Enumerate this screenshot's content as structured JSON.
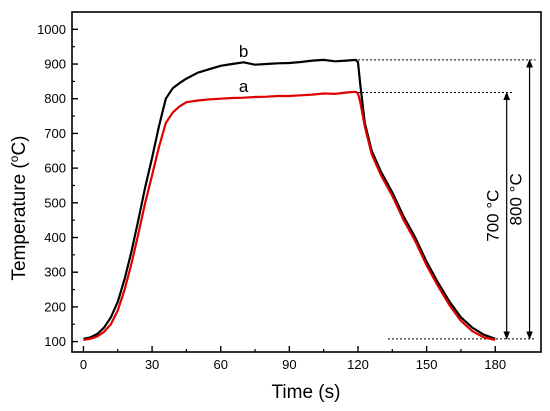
{
  "chart_data": {
    "type": "line",
    "xlabel": "Time (s)",
    "ylabel_main": "Temperature (",
    "ylabel_sup": "o",
    "ylabel_end": "C)",
    "xlim": [
      -5,
      200
    ],
    "ylim": [
      70,
      1050
    ],
    "x_ticks": [
      0,
      30,
      60,
      90,
      120,
      150,
      180
    ],
    "y_ticks": [
      100,
      200,
      300,
      400,
      500,
      600,
      700,
      800,
      900,
      1000
    ],
    "grid": false,
    "series": [
      {
        "name": "b",
        "color": "#000000",
        "label_at": [
          70,
          920
        ],
        "x": [
          0,
          3,
          6,
          9,
          12,
          15,
          18,
          21,
          24,
          27,
          30,
          33,
          36,
          39,
          42,
          45,
          50,
          55,
          60,
          65,
          70,
          75,
          80,
          85,
          90,
          95,
          100,
          105,
          110,
          115,
          119,
          120,
          121,
          123,
          126,
          130,
          135,
          140,
          145,
          150,
          155,
          160,
          165,
          170,
          175,
          180
        ],
        "y": [
          108,
          112,
          122,
          140,
          170,
          215,
          280,
          360,
          450,
          545,
          630,
          720,
          800,
          830,
          845,
          858,
          875,
          885,
          895,
          900,
          905,
          898,
          900,
          902,
          903,
          906,
          910,
          912,
          908,
          910,
          912,
          905,
          840,
          730,
          650,
          590,
          530,
          460,
          400,
          330,
          270,
          215,
          170,
          140,
          120,
          108
        ]
      },
      {
        "name": "a",
        "color": "#e00000",
        "label_at": [
          70,
          820
        ],
        "x": [
          0,
          3,
          6,
          9,
          12,
          15,
          18,
          21,
          24,
          27,
          30,
          33,
          36,
          39,
          42,
          45,
          50,
          55,
          60,
          65,
          70,
          75,
          80,
          85,
          90,
          95,
          100,
          105,
          110,
          115,
          119,
          120,
          121,
          123,
          126,
          130,
          135,
          140,
          145,
          150,
          155,
          160,
          165,
          170,
          175,
          180
        ],
        "y": [
          105,
          108,
          115,
          128,
          150,
          190,
          250,
          325,
          410,
          500,
          580,
          660,
          730,
          760,
          778,
          790,
          795,
          798,
          800,
          802,
          803,
          805,
          806,
          808,
          808,
          810,
          812,
          815,
          814,
          818,
          820,
          815,
          790,
          720,
          640,
          580,
          520,
          450,
          390,
          320,
          260,
          205,
          160,
          130,
          112,
          105
        ]
      }
    ],
    "annotations": [
      {
        "text": "700 °C",
        "x": 185,
        "from": 108,
        "to": 818,
        "ref_start": 120
      },
      {
        "text": "800 °C",
        "x": 195,
        "from": 108,
        "to": 912,
        "ref_start": 120
      }
    ]
  }
}
